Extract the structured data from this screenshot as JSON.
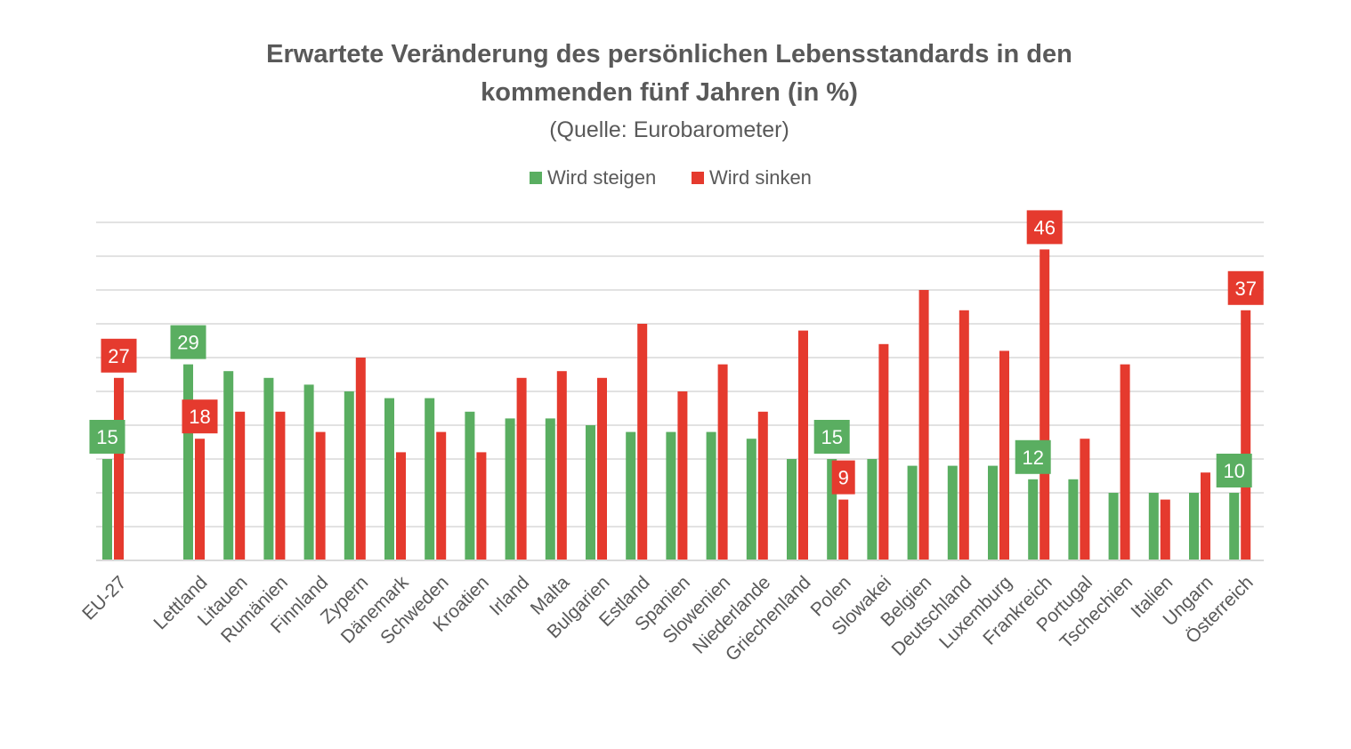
{
  "colors": {
    "rise": "#5aae61",
    "fall": "#e53a2e",
    "text": "#595959",
    "grid": "#d9d9d9"
  },
  "chart_data": {
    "type": "bar",
    "title_line1": "Erwartete Veränderung des persönlichen Lebensstandards in den",
    "title_line2": "kommenden fünf Jahren (in %)",
    "subtitle": "(Quelle: Eurobarometer)",
    "xlabel": "",
    "ylabel": "",
    "ylim": [
      0,
      50
    ],
    "grid": true,
    "legend_position": "top-center",
    "categories": [
      "EU-27",
      "Lettland",
      "Litauen",
      "Rumänien",
      "Finnland",
      "Zypern",
      "Dänemark",
      "Schweden",
      "Kroatien",
      "Irland",
      "Malta",
      "Bulgarien",
      "Estland",
      "Spanien",
      "Slowenien",
      "Niederlande",
      "Griechenland",
      "Polen",
      "Slowakei",
      "Belgien",
      "Deutschland",
      "Luxemburg",
      "Frankreich",
      "Portugal",
      "Tschechien",
      "Italien",
      "Ungarn",
      "Österreich"
    ],
    "series": [
      {
        "name": "Wird steigen",
        "color": "#5aae61",
        "values": [
          15,
          29,
          28,
          27,
          26,
          25,
          24,
          24,
          22,
          21,
          21,
          20,
          19,
          19,
          19,
          18,
          15,
          15,
          15,
          14,
          14,
          14,
          12,
          12,
          10,
          10,
          10,
          10
        ]
      },
      {
        "name": "Wird sinken",
        "color": "#e53a2e",
        "values": [
          27,
          18,
          22,
          22,
          19,
          30,
          16,
          19,
          16,
          27,
          28,
          27,
          35,
          25,
          29,
          22,
          34,
          9,
          32,
          40,
          37,
          31,
          46,
          18,
          29,
          9,
          13,
          37
        ]
      }
    ],
    "data_labels": [
      {
        "series": 0,
        "index": 0,
        "text": "15"
      },
      {
        "series": 1,
        "index": 0,
        "text": "27"
      },
      {
        "series": 0,
        "index": 1,
        "text": "29"
      },
      {
        "series": 1,
        "index": 1,
        "text": "18"
      },
      {
        "series": 0,
        "index": 17,
        "text": "15"
      },
      {
        "series": 1,
        "index": 17,
        "text": "9"
      },
      {
        "series": 0,
        "index": 22,
        "text": "12"
      },
      {
        "series": 1,
        "index": 22,
        "text": "46"
      },
      {
        "series": 0,
        "index": 27,
        "text": "10"
      },
      {
        "series": 1,
        "index": 27,
        "text": "37"
      }
    ]
  }
}
